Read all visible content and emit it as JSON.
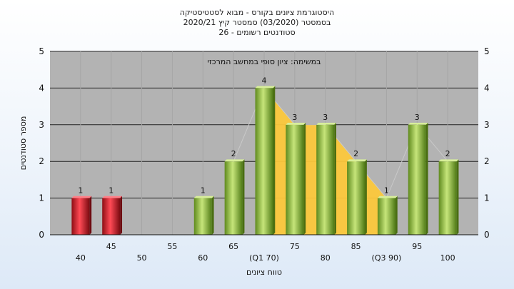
{
  "chart_data": {
    "type": "bar",
    "title": "היסטוגרמת ציונים בקורס - מבוא לסטטיסטיקה",
    "subtitle": "בסמסטר  (03/2020)  סמסטר קיץ  2020/21",
    "subsubtitle": "סטודנטים רשומים - 26",
    "annotation": "במשימה: ציון סופי במחשב המרכזי",
    "xlabel": "טווח ציונים",
    "ylabel": "מספר סטודנטים",
    "ylim": [
      0,
      5
    ],
    "yticks": [
      0,
      1,
      2,
      3,
      4,
      5
    ],
    "grid": true,
    "categories": [
      "40",
      "45",
      "50",
      "55",
      "60",
      "65",
      "70",
      "75",
      "80",
      "85",
      "90",
      "95",
      "100"
    ],
    "category_labels": [
      "40",
      "45",
      "50",
      "55",
      "60",
      "65",
      "(Q1 70)",
      "75",
      "80",
      "85",
      "(Q3 90)",
      "95",
      "100"
    ],
    "values": [
      1,
      1,
      0,
      0,
      1,
      2,
      4,
      3,
      3,
      2,
      1,
      3,
      2
    ],
    "value_labels": [
      "1",
      "1",
      "",
      "",
      "1",
      "2",
      "4",
      "3",
      "3",
      "2",
      "1",
      "3",
      "2"
    ],
    "failing_color": "#d81e2a",
    "passing_color": "#8fbf3a",
    "interquartile_fill": "#fcc83c",
    "plot_background": "#b3b3b3"
  }
}
